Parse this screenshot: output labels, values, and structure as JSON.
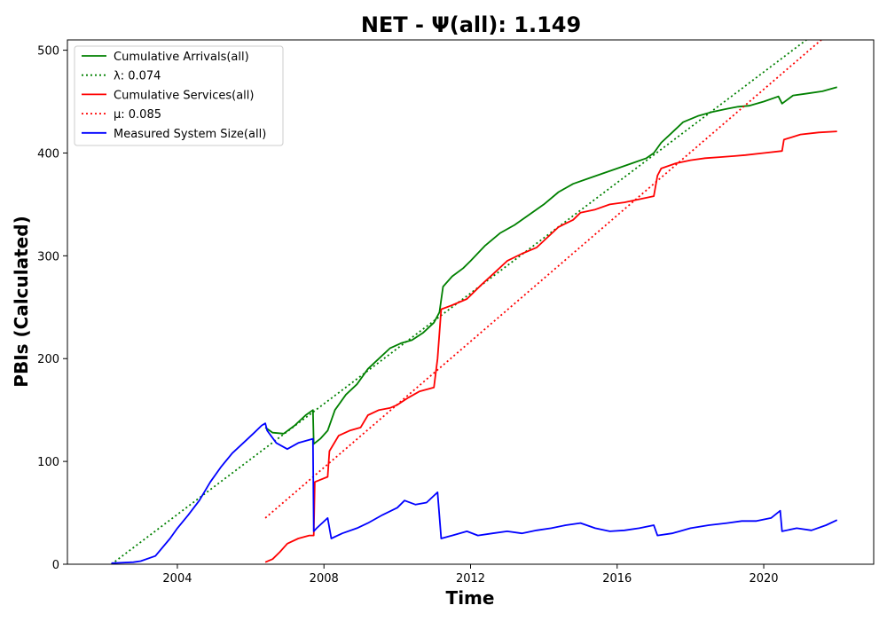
{
  "chart_data": {
    "type": "line",
    "title": "NET -  Ψ(all): 1.149",
    "xlabel": "Time",
    "ylabel": "PBIs (Calculated)",
    "xlim": [
      2001.0,
      2023.0
    ],
    "ylim": [
      0,
      510
    ],
    "x_ticks": [
      2004,
      2008,
      2012,
      2016,
      2020
    ],
    "x_tick_labels": [
      "2004",
      "2008",
      "2012",
      "2016",
      "2020"
    ],
    "y_ticks": [
      0,
      100,
      200,
      300,
      400,
      500
    ],
    "y_tick_labels": [
      "0",
      "100",
      "200",
      "300",
      "400",
      "500"
    ],
    "grid": false,
    "legend_position": "top-left",
    "series": [
      {
        "name": "Cumulative Arrivals(all)",
        "color": "#008000",
        "style": "solid",
        "x": [
          2006.4,
          2006.6,
          2006.9,
          2007.2,
          2007.5,
          2007.7,
          2007.72,
          2007.9,
          2008.1,
          2008.3,
          2008.6,
          2008.9,
          2009.2,
          2009.5,
          2009.8,
          2010.1,
          2010.4,
          2010.7,
          2011.0,
          2011.15,
          2011.25,
          2011.5,
          2011.8,
          2012.0,
          2012.4,
          2012.8,
          2013.2,
          2013.6,
          2014.0,
          2014.4,
          2014.8,
          2015.2,
          2015.6,
          2016.0,
          2016.4,
          2016.8,
          2017.0,
          2017.2,
          2017.5,
          2017.8,
          2018.2,
          2018.6,
          2019.0,
          2019.3,
          2019.6,
          2020.0,
          2020.4,
          2020.5,
          2020.8,
          2021.2,
          2021.6,
          2022.0
        ],
        "y": [
          133,
          128,
          127,
          135,
          145,
          150,
          117,
          122,
          130,
          150,
          165,
          175,
          190,
          200,
          210,
          215,
          218,
          225,
          235,
          245,
          270,
          280,
          288,
          295,
          310,
          322,
          330,
          340,
          350,
          362,
          370,
          375,
          380,
          385,
          390,
          395,
          400,
          410,
          420,
          430,
          436,
          440,
          443,
          445,
          446,
          450,
          455,
          448,
          456,
          458,
          460,
          464
        ]
      },
      {
        "name": "λ: 0.074",
        "color": "#008000",
        "style": "dotted",
        "x": [
          2002.2,
          2021.2
        ],
        "y": [
          0,
          511
        ]
      },
      {
        "name": "Cumulative Services(all)",
        "color": "#ff0000",
        "style": "solid",
        "x": [
          2006.4,
          2006.6,
          2006.8,
          2007.0,
          2007.3,
          2007.6,
          2007.72,
          2007.75,
          2008.1,
          2008.15,
          2008.4,
          2008.7,
          2009.0,
          2009.2,
          2009.5,
          2009.8,
          2010.0,
          2010.3,
          2010.6,
          2011.0,
          2011.1,
          2011.2,
          2011.5,
          2011.9,
          2012.3,
          2012.7,
          2013.0,
          2013.4,
          2013.8,
          2014.1,
          2014.4,
          2014.8,
          2015.0,
          2015.4,
          2015.8,
          2016.2,
          2016.6,
          2017.0,
          2017.1,
          2017.2,
          2017.6,
          2018.0,
          2018.4,
          2018.8,
          2019.2,
          2019.5,
          2020.0,
          2020.5,
          2020.55,
          2021.0,
          2021.5,
          2022.0
        ],
        "y": [
          2,
          5,
          12,
          20,
          25,
          28,
          28,
          80,
          85,
          110,
          125,
          130,
          133,
          145,
          150,
          152,
          155,
          162,
          168,
          172,
          200,
          248,
          252,
          258,
          272,
          285,
          295,
          302,
          308,
          318,
          328,
          335,
          342,
          345,
          350,
          352,
          355,
          358,
          378,
          385,
          390,
          393,
          395,
          396,
          397,
          398,
          400,
          402,
          413,
          418,
          420,
          421
        ]
      },
      {
        "name": "μ: 0.085",
        "color": "#ff0000",
        "style": "dotted",
        "x": [
          2006.4,
          2021.6
        ],
        "y": [
          45,
          511
        ]
      },
      {
        "name": "Measured System Size(all)",
        "color": "#0000ff",
        "style": "solid",
        "x": [
          2002.2,
          2002.8,
          2003.0,
          2003.4,
          2003.8,
          2004.0,
          2004.3,
          2004.6,
          2004.9,
          2005.2,
          2005.5,
          2005.8,
          2006.1,
          2006.3,
          2006.4,
          2006.45,
          2006.7,
          2007.0,
          2007.3,
          2007.7,
          2007.72,
          2007.8,
          2008.1,
          2008.2,
          2008.5,
          2008.9,
          2009.2,
          2009.6,
          2010.0,
          2010.2,
          2010.5,
          2010.8,
          2011.1,
          2011.2,
          2011.5,
          2011.9,
          2012.2,
          2012.6,
          2013.0,
          2013.4,
          2013.8,
          2014.2,
          2014.6,
          2015.0,
          2015.4,
          2015.8,
          2016.2,
          2016.6,
          2017.0,
          2017.1,
          2017.5,
          2018.0,
          2018.5,
          2019.0,
          2019.4,
          2019.8,
          2020.2,
          2020.45,
          2020.5,
          2020.9,
          2021.3,
          2021.7,
          2022.0
        ],
        "y": [
          1,
          2,
          3,
          8,
          25,
          35,
          48,
          62,
          80,
          95,
          108,
          118,
          128,
          135,
          137,
          130,
          118,
          112,
          118,
          122,
          32,
          35,
          45,
          25,
          30,
          35,
          40,
          48,
          55,
          62,
          58,
          60,
          70,
          25,
          28,
          32,
          28,
          30,
          32,
          30,
          33,
          35,
          38,
          40,
          35,
          32,
          33,
          35,
          38,
          28,
          30,
          35,
          38,
          40,
          42,
          42,
          45,
          52,
          32,
          35,
          33,
          38,
          43
        ]
      }
    ]
  }
}
